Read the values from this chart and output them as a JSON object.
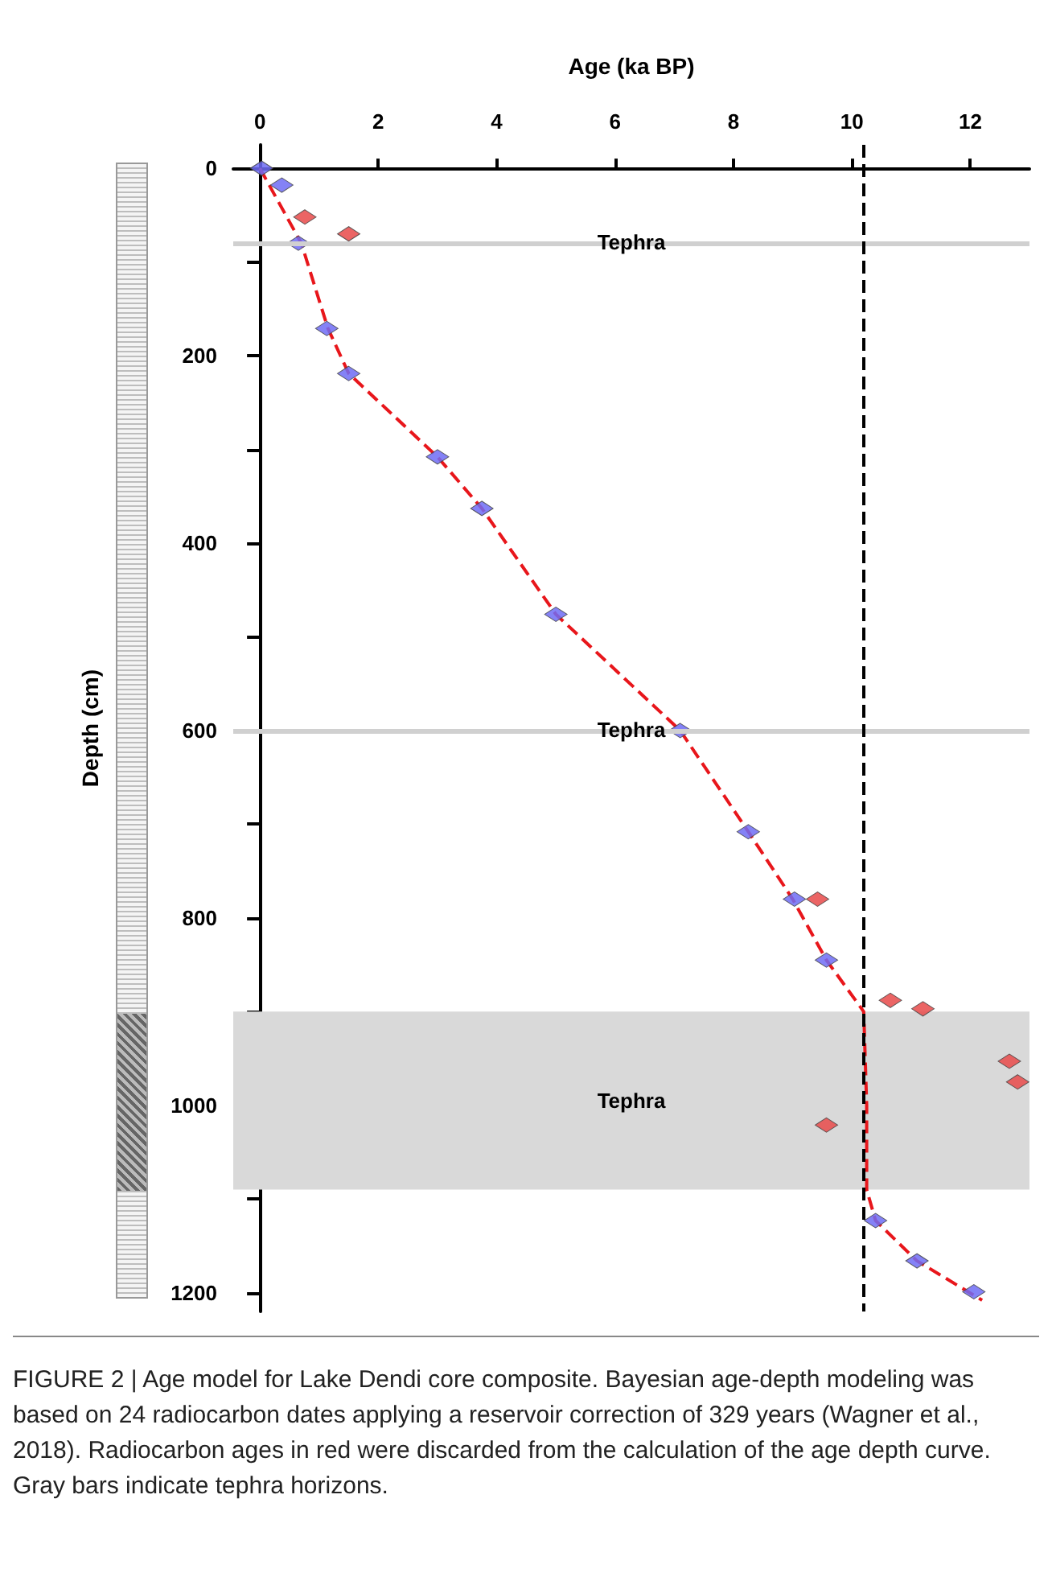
{
  "chart_data": {
    "type": "scatter",
    "xlabel": "Age (ka BP)",
    "ylabel": "Depth (cm)",
    "xlim": [
      -0.45,
      13
    ],
    "xticks": [
      0,
      2,
      4,
      6,
      8,
      10,
      12
    ],
    "ylim": [
      1220,
      -25
    ],
    "yticks": [
      0,
      {
        "value": 100,
        "label": null
      },
      200,
      {
        "value": 300,
        "label": null
      },
      400,
      {
        "value": 500,
        "label": null
      },
      600,
      {
        "value": 700,
        "label": null
      },
      800,
      {
        "value": 900,
        "label": null
      },
      1000,
      {
        "value": 1100,
        "label": null
      },
      1200
    ],
    "series": [
      {
        "type": "line",
        "color": "#e8161b",
        "line_style": "dashed",
        "marker": "none",
        "x": [
          0,
          0.7,
          1.15,
          1.5,
          3.0,
          3.75,
          5.0,
          7.1,
          8.25,
          9.0,
          9.57,
          10.2,
          10.25,
          10.25,
          10.4,
          11.1,
          12.2
        ],
        "values": [
          0,
          80,
          171,
          219,
          308,
          363,
          476,
          600,
          708,
          780,
          845,
          900,
          1000,
          1090,
          1123,
          1166,
          1208
        ]
      },
      {
        "color": "#6f6cf5",
        "marker": "diamond",
        "x": [
          0.03,
          0.37,
          0.65,
          1.13,
          1.5,
          3.0,
          3.75,
          5.0,
          7.1,
          8.25,
          9.03,
          9.57,
          10.4,
          11.1,
          12.06
        ],
        "values": [
          0,
          18,
          80,
          171,
          219,
          308,
          363,
          476,
          600,
          708,
          780,
          845,
          1123,
          1166,
          1199
        ]
      },
      {
        "color": "#e84a4a",
        "marker": "diamond",
        "x": [
          0.76,
          1.5,
          9.42,
          10.65,
          11.2,
          12.66,
          12.8,
          9.57
        ],
        "values": [
          52,
          70,
          780,
          888,
          897,
          953,
          975,
          1021
        ]
      }
    ],
    "ref_lines": [
      {
        "axis": "y",
        "value": 80,
        "label": "Tephra",
        "color": "#d0d0d0"
      },
      {
        "axis": "y",
        "value": 600,
        "label": "Tephra",
        "color": "#d0d0d0"
      },
      {
        "axis": "x",
        "value": 10.2,
        "label": null,
        "color": "#000000",
        "line_style": "dashed"
      }
    ],
    "bands": [
      {
        "axis": "y",
        "from": 900,
        "to": 1090,
        "label": "Tephra",
        "color": "#d9d9d9"
      }
    ],
    "annotations": [
      "FIGURE 2 | Age model for Lake Dendi core composite. Bayesian age-depth modeling was based on 24 radiocarbon dates applying a reservoir correction of 329 years (Wagner et al., 2018). Radiocarbon ages in red were discarded from the calculation of the age depth curve. Gray bars indicate tephra horizons."
    ]
  }
}
